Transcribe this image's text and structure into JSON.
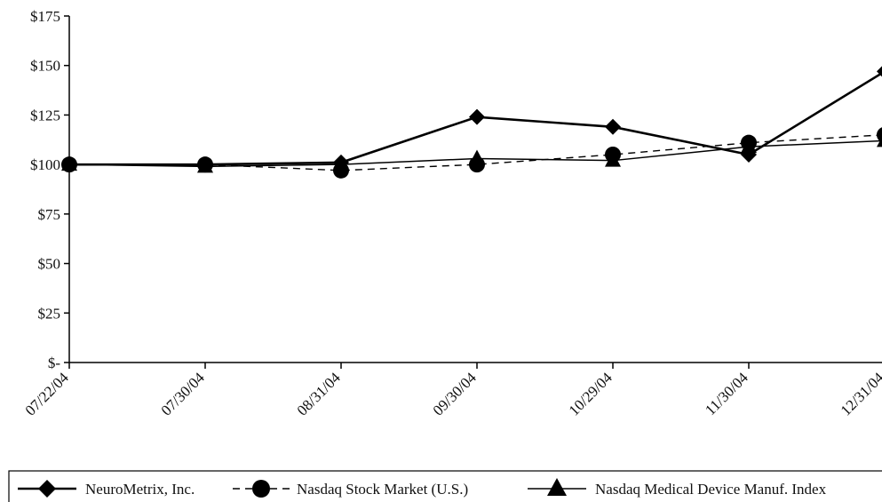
{
  "chart_data": {
    "type": "line",
    "x": [
      "07/22/04",
      "07/30/04",
      "08/31/04",
      "09/30/04",
      "10/29/04",
      "11/30/04",
      "12/31/04"
    ],
    "y_tick_labels": [
      "$-",
      "$25",
      "$50",
      "$75",
      "$100",
      "$125",
      "$150",
      "$175"
    ],
    "y_ticks": [
      0,
      25,
      50,
      75,
      100,
      125,
      150,
      175
    ],
    "ylim": [
      0,
      175
    ],
    "grid": false,
    "legend_position": "bottom",
    "series": [
      {
        "name": "NeuroMetrix, Inc.",
        "marker": "diamond",
        "line_style": "solid-bold",
        "color": "#000000",
        "values": [
          100,
          100,
          101,
          124,
          119,
          105,
          147
        ]
      },
      {
        "name": "Nasdaq Stock Market (U.S.)",
        "marker": "circle",
        "line_style": "dashed",
        "color": "#000000",
        "values": [
          100,
          100,
          97,
          100,
          105,
          111,
          115
        ]
      },
      {
        "name": "Nasdaq Medical Device Manuf. Index",
        "marker": "triangle",
        "line_style": "solid",
        "color": "#000000",
        "values": [
          100,
          99,
          100,
          103,
          102,
          109,
          112
        ]
      }
    ]
  }
}
